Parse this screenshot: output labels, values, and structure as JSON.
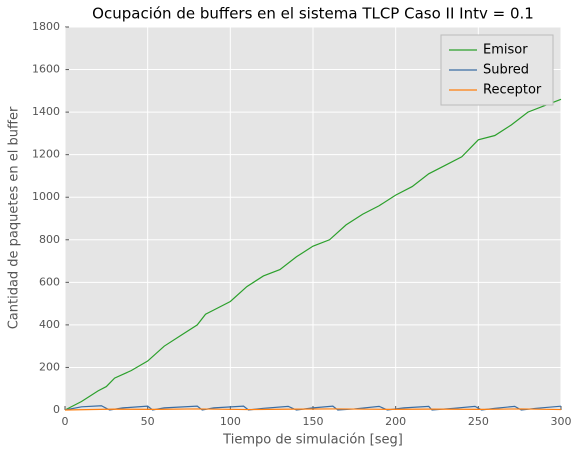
{
  "chart_data": {
    "type": "line",
    "title": "Ocupación de buffers en el sistema TLCP Caso II Intv = 0.1",
    "x_label": "Tiempo de simulación [seg]",
    "y_label": "Cantidad de paquetes en el buffer",
    "xlim": [
      0,
      300
    ],
    "ylim": [
      0,
      1800
    ],
    "xticks": [
      0,
      50,
      100,
      150,
      200,
      250,
      300
    ],
    "yticks": [
      0,
      200,
      400,
      600,
      800,
      1000,
      1200,
      1400,
      1600,
      1800
    ],
    "grid": true,
    "legend": "upper right",
    "series": [
      {
        "name": "Emisor",
        "color": "#2ca02c",
        "x": [
          0,
          10,
          20,
          25,
          30,
          40,
          50,
          60,
          70,
          80,
          85,
          90,
          100,
          110,
          120,
          130,
          140,
          150,
          160,
          170,
          180,
          190,
          200,
          210,
          220,
          230,
          240,
          250,
          260,
          270,
          280,
          290,
          300
        ],
        "values": [
          0,
          40,
          90,
          110,
          150,
          185,
          230,
          300,
          350,
          400,
          450,
          470,
          510,
          580,
          630,
          660,
          720,
          770,
          800,
          870,
          920,
          960,
          1010,
          1050,
          1110,
          1150,
          1190,
          1270,
          1290,
          1340,
          1400,
          1430,
          1460
        ]
      },
      {
        "name": "Subred",
        "color": "#3a6ea5",
        "x": [
          0,
          10,
          22,
          27,
          35,
          50,
          53,
          60,
          80,
          83,
          90,
          108,
          111,
          120,
          135,
          140,
          150,
          162,
          165,
          175,
          190,
          195,
          205,
          220,
          222,
          235,
          248,
          252,
          260,
          272,
          276,
          285,
          300
        ],
        "values": [
          0,
          15,
          20,
          0,
          10,
          18,
          0,
          10,
          18,
          0,
          10,
          18,
          0,
          8,
          17,
          0,
          10,
          18,
          0,
          5,
          17,
          0,
          10,
          17,
          0,
          8,
          17,
          0,
          8,
          17,
          0,
          8,
          18
        ]
      },
      {
        "name": "Receptor",
        "color": "#ff7f0e",
        "x": [
          0,
          30,
          55,
          80,
          110,
          140,
          165,
          195,
          222,
          252,
          276,
          300
        ],
        "values": [
          0,
          4,
          3,
          5,
          2,
          4,
          5,
          3,
          4,
          3,
          5,
          2
        ]
      }
    ]
  }
}
